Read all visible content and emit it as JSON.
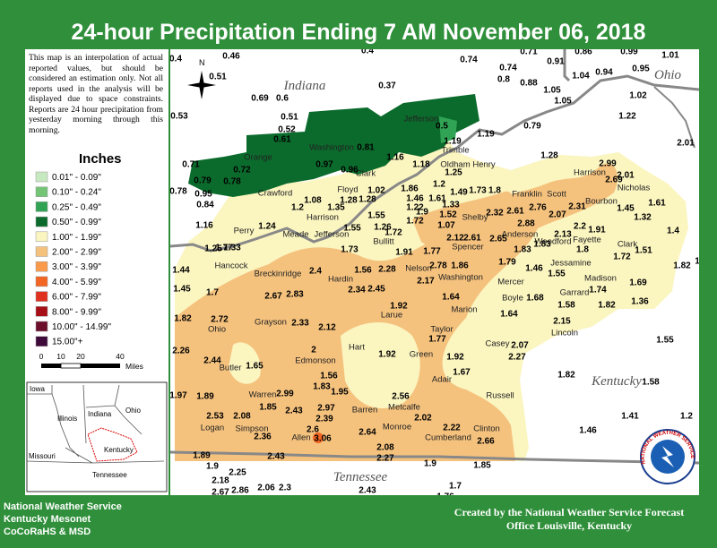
{
  "title": "24-hour Precipitation Ending 7 AM  November 06, 2018",
  "disclaimer": "This map is an interpolation of actual reported values, but should be considered an estimation only. Not all reports used in the analysis will be displayed due to space constraints. Reports are 24 hour precipitation from yesterday morning through this morning.",
  "legend": {
    "title": "Inches",
    "items": [
      {
        "label": "0.01\" - 0.09\"",
        "color": "#c7e9c0"
      },
      {
        "label": "0.10\" - 0.24\"",
        "color": "#74c476"
      },
      {
        "label": "0.25\" - 0.49\"",
        "color": "#31a354"
      },
      {
        "label": "0.50\" - 0.99\"",
        "color": "#0b6b2c"
      },
      {
        "label": "1.00\" - 1.99\"",
        "color": "#fbf5c0"
      },
      {
        "label": "2.00\" - 2.99\"",
        "color": "#f5c27e"
      },
      {
        "label": "3.00\" - 3.99\"",
        "color": "#fb9a4a"
      },
      {
        "label": "4.00\" - 5.99\"",
        "color": "#f26522"
      },
      {
        "label": "6.00\" - 7.99\"",
        "color": "#e0301e"
      },
      {
        "label": "8.00\" - 9.99\"",
        "color": "#a50f15"
      },
      {
        "label": "10.00\" - 14.99\"",
        "color": "#6b0f2a"
      },
      {
        "label": "15.00\"+",
        "color": "#3f0a3a"
      }
    ]
  },
  "scale": {
    "labels": [
      "0",
      "10",
      "20",
      "40"
    ],
    "unit": "Miles"
  },
  "compass": "N",
  "inset_states": [
    "Iowa",
    "Illinois",
    "Indiana",
    "Ohio",
    "Missouri",
    "Kentucky",
    "Tennessee"
  ],
  "states": [
    "Indiana",
    "Ohio",
    "Kentucky",
    "Tennessee"
  ],
  "counties": [
    "Crawford",
    "Harrison",
    "Floyd",
    "Clark",
    "Jefferson",
    "Trimble",
    "Oldham",
    "Henry",
    "Shelby",
    "Spencer",
    "Bullitt",
    "Hardin",
    "Meade",
    "Breckinridge",
    "Hancock",
    "Perry",
    "Ohio",
    "Grayson",
    "Larue",
    "Nelson",
    "Washington",
    "Marion",
    "Mercer",
    "Boyle",
    "Anderson",
    "Franklin",
    "Scott",
    "Harrison",
    "Bourbon",
    "Nicholas",
    "Woodford",
    "Fayette",
    "Jessamine",
    "Garrard",
    "Madison",
    "Clark",
    "Lincoln",
    "Casey",
    "Taylor",
    "Green",
    "Adair",
    "Russell",
    "Hart",
    "Edmonson",
    "Butler",
    "Warren",
    "Barren",
    "Metcalfe",
    "Logan",
    "Simpson",
    "Allen",
    "Monroe",
    "Cumberland",
    "Clinton",
    "Orange",
    "Washington",
    "Jefferson"
  ],
  "observations": [
    0.4,
    0.46,
    0.51,
    0.69,
    0.6,
    0.51,
    0.52,
    0.61,
    0.53,
    0.4,
    0.37,
    0.74,
    0.74,
    0.8,
    0.88,
    0.71,
    0.91,
    0.86,
    0.99,
    1.01,
    0.95,
    1.04,
    0.94,
    1.05,
    1.05,
    1.02,
    1.22,
    2.01,
    1.28,
    0.79,
    1.19,
    1.19,
    0.5,
    0.81,
    0.97,
    0.96,
    1.16,
    1.18,
    1.25,
    0.71,
    0.72,
    0.79,
    0.78,
    0.95,
    0.84,
    0.78,
    1.16,
    1.24,
    1.2,
    1.08,
    1.35,
    1.28,
    1.28,
    1.02,
    1.55,
    1.26,
    1.55,
    1.72,
    1.72,
    1.22,
    1.46,
    1.86,
    1.2,
    1.49,
    1.73,
    1.8,
    1.33,
    1.61,
    1.07,
    1.52,
    1.9,
    1.91,
    1.77,
    2.12,
    2.61,
    2.65,
    2.32,
    2.61,
    2.76,
    2.88,
    2.07,
    2.31,
    2.2,
    2.13,
    1.91,
    1.83,
    1.8,
    1.55,
    1.46,
    1.79,
    1.83,
    2.99,
    2.69,
    2.01,
    1.61,
    1.45,
    1.32,
    1.4,
    1.51,
    1.72,
    1.82,
    1.83,
    1.74,
    1.69,
    1.82,
    1.36,
    1.58,
    1.68,
    1.64,
    2.15,
    1.73,
    1.56,
    2.28,
    2.4,
    2.34,
    2.45,
    2.17,
    2.78,
    1.86,
    1.64,
    1.92,
    2.67,
    2.83,
    2.72,
    2.33,
    2.12,
    1.77,
    1.25,
    1.33,
    1.44,
    1.45,
    1.7,
    1.82,
    2.26,
    2.44,
    1.65,
    2,
    1.56,
    1.83,
    1.95,
    1.92,
    1.92,
    1.77,
    1.67,
    2.07,
    2.27,
    1.82,
    1.55,
    1.58,
    1.41,
    1.2,
    1.46,
    1.97,
    1.89,
    2.99,
    1.85,
    2.43,
    2.97,
    2.56,
    2.02,
    2.39,
    2.6,
    3.06,
    2.53,
    2.08,
    2.36,
    2.64,
    2.22,
    2.66,
    2.08,
    2.27,
    1.89,
    2.43,
    1.9,
    2.25,
    2.18,
    2.67,
    2.86,
    2.06,
    2.3,
    1.9,
    1.85,
    1.7,
    2.43,
    1.76
  ],
  "logo_text": "NATIONAL WEATHER SERVICE",
  "credits_left": [
    "National Weather Service",
    "Kentucky Mesonet",
    "CoCoRaHS & MSD"
  ],
  "credits_right": [
    "Created by the National Weather Service Forecast",
    "Office Louisville, Kentucky"
  ]
}
